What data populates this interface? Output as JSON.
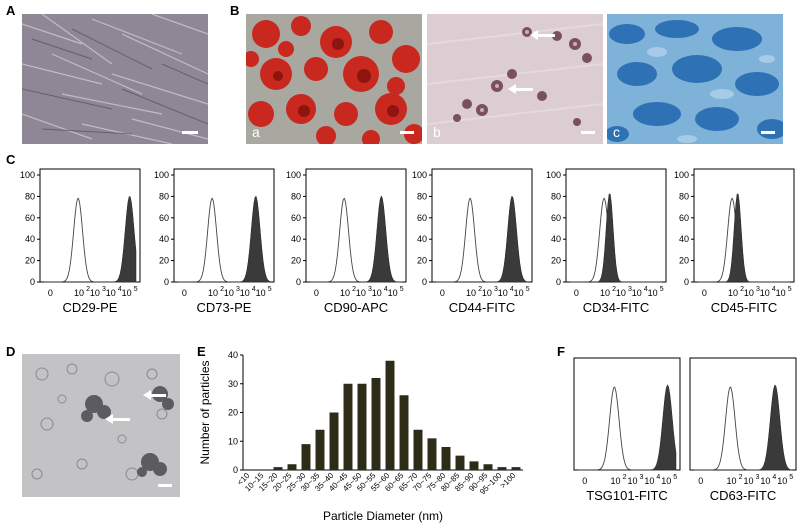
{
  "panels": {
    "A": "A",
    "B": "B",
    "C": "C",
    "D": "D",
    "E": "E",
    "F": "F",
    "b_sub": [
      "a",
      "b",
      "c"
    ]
  },
  "colors": {
    "phase": "#8f8795",
    "oil_red": "#c8281e",
    "oil_bg": "#9aa6a0",
    "alizarin_bg": "#d9c9cf",
    "alcian": "#2f7fc0",
    "filled": "#3a3a3a",
    "bar": "#2c2c18"
  },
  "flow_panels": [
    {
      "name": "CD29-PE",
      "pos": 5.0
    },
    {
      "name": "CD73-PE",
      "pos": 4.5
    },
    {
      "name": "CD90-APC",
      "pos": 4.1
    },
    {
      "name": "CD44-FITC",
      "pos": 4.4
    },
    {
      "name": "CD34-FITC",
      "pos": 2.1
    },
    {
      "name": "CD45-FITC",
      "pos": 2.1
    }
  ],
  "flow_y_ticks": [
    "0",
    "20",
    "40",
    "60",
    "80",
    "100"
  ],
  "flow_x_ticks": [
    "0",
    "10",
    "10",
    "10",
    "10"
  ],
  "flow_x_exps": [
    "2",
    "3",
    "4",
    "5"
  ],
  "f_panels": [
    {
      "name": "TSG101-FITC",
      "pos": 4.9
    },
    {
      "name": "CD63-FITC",
      "pos": 4.4
    }
  ],
  "chart_data": {
    "type": "bar",
    "categories": [
      "<10",
      "10~15",
      "15~20",
      "20~25",
      "25~30",
      "30~35",
      "35~40",
      "40~45",
      "45~50",
      "50~55",
      "55~60",
      "60~65",
      "65~70",
      "70~75",
      "75~80",
      "80~85",
      "85~90",
      "90~95",
      "95~100",
      ">100"
    ],
    "values": [
      0,
      0,
      1,
      2,
      9,
      14,
      20,
      30,
      30,
      32,
      38,
      26,
      14,
      11,
      8,
      5,
      3,
      2,
      1,
      1
    ],
    "title": "",
    "xlabel": "Particle Diameter (nm)",
    "ylabel": "Number of particles",
    "ylim": [
      0,
      40
    ],
    "yticks": [
      "0",
      "10",
      "20",
      "30",
      "40"
    ]
  }
}
